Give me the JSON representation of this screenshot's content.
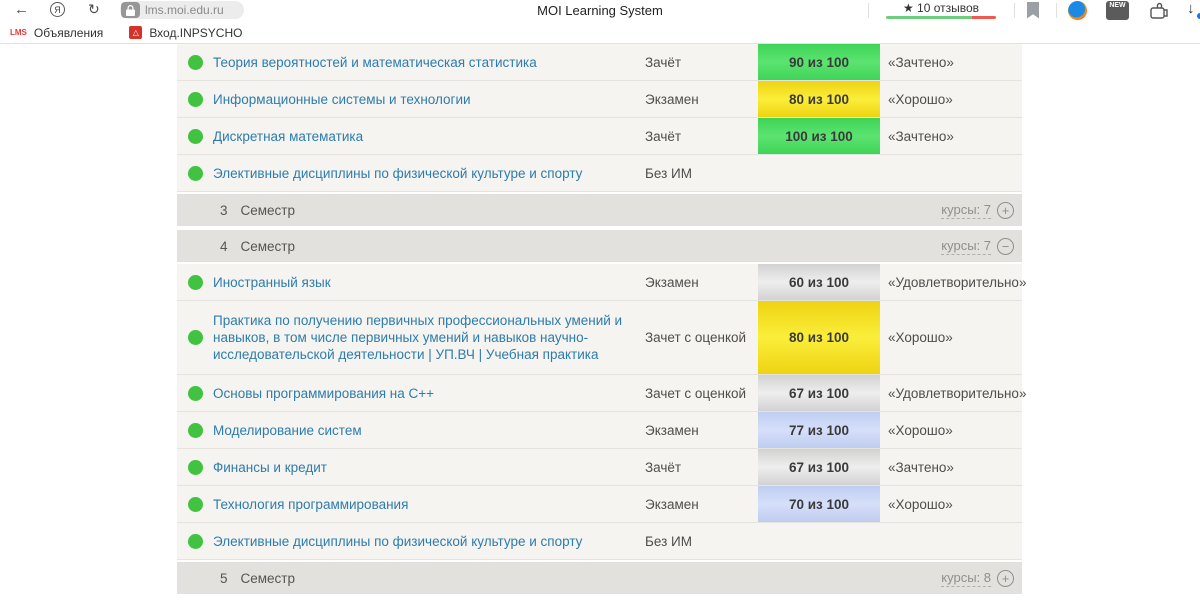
{
  "browser": {
    "url": "lms.moi.edu.ru",
    "page_title": "MOI Learning System",
    "icons": {
      "back": "←",
      "yandex": "Я",
      "refresh": "↻",
      "star": "★",
      "download_arrow": "↓",
      "new_badge": "NEW",
      "diamond_fav": "△",
      "lms_fav": "LMS"
    },
    "reviews": {
      "label": "★ 10 отзывов",
      "green_pct": 78,
      "red_pct": 22
    },
    "bookmarks": [
      {
        "label": "Объявления"
      },
      {
        "label": "Вход.INPSYCHO"
      }
    ]
  },
  "colors": {
    "status_dot": "#41c241",
    "course_link": "#2e7cad",
    "row_bg": "#f5f4f0",
    "semester_bg": "#e2e1dd",
    "score_green": [
      "#3fd457",
      "#5ce371"
    ],
    "score_yellow": [
      "#eed312",
      "#fbee3a"
    ],
    "score_gray": [
      "#d2d2d2",
      "#eeeeee"
    ],
    "score_blue": [
      "#bfcdf0",
      "#d6dffa"
    ],
    "reviews_green": "#6fcd7d",
    "reviews_red": "#ef5a50"
  },
  "table": {
    "rows": [
      {
        "kind": "course",
        "name": "Теория вероятностей и математическая статистика",
        "exam": "Зачёт",
        "score": "90 из 100",
        "score_color": "score_green",
        "grade": "«Зачтено»"
      },
      {
        "kind": "course",
        "name": "Информационные системы и технологии",
        "exam": "Экзамен",
        "score": "80 из 100",
        "score_color": "score_yellow",
        "grade": "«Хорошо»"
      },
      {
        "kind": "course",
        "name": "Дискретная математика",
        "exam": "Зачёт",
        "score": "100 из 100",
        "score_color": "score_green",
        "grade": "«Зачтено»"
      },
      {
        "kind": "course",
        "name": "Элективные дисциплины по физической культуре и спорту",
        "exam": "Без ИМ",
        "score": null,
        "grade": null
      },
      {
        "kind": "semester",
        "num": "3",
        "word": "Семестр",
        "courses_label": "курсы: 7",
        "toggle": "+"
      },
      {
        "kind": "semester",
        "num": "4",
        "word": "Семестр",
        "courses_label": "курсы: 7",
        "toggle": "−"
      },
      {
        "kind": "course",
        "name": "Иностранный язык",
        "exam": "Экзамен",
        "score": "60 из 100",
        "score_color": "score_gray",
        "grade": "«Удовлетворительно»"
      },
      {
        "kind": "course",
        "name": "Практика по получению первичных профессиональных умений и навыков, в том числе первичных умений и навыков научно-исследовательской деятельности | УП.ВЧ | Учебная практика",
        "exam": "Зачет с оценкой",
        "score": "80 из 100",
        "score_color": "score_yellow",
        "grade": "«Хорошо»",
        "min_height": 74
      },
      {
        "kind": "course",
        "name": "Основы программирования на C++",
        "exam": "Зачет с оценкой",
        "score": "67 из 100",
        "score_color": "score_gray",
        "grade": "«Удовлетворительно»"
      },
      {
        "kind": "course",
        "name": "Моделирование систем",
        "exam": "Экзамен",
        "score": "77 из 100",
        "score_color": "score_blue",
        "grade": "«Хорошо»"
      },
      {
        "kind": "course",
        "name": "Финансы и кредит",
        "exam": "Зачёт",
        "score": "67 из 100",
        "score_color": "score_gray",
        "grade": "«Зачтено»"
      },
      {
        "kind": "course",
        "name": "Технология программирования",
        "exam": "Экзамен",
        "score": "70 из 100",
        "score_color": "score_blue",
        "grade": "«Хорошо»"
      },
      {
        "kind": "course",
        "name": "Элективные дисциплины по физической культуре и спорту",
        "exam": "Без ИМ",
        "score": null,
        "grade": null
      },
      {
        "kind": "semester",
        "num": "5",
        "word": "Семестр",
        "courses_label": "курсы: 8",
        "toggle": "+"
      }
    ]
  }
}
